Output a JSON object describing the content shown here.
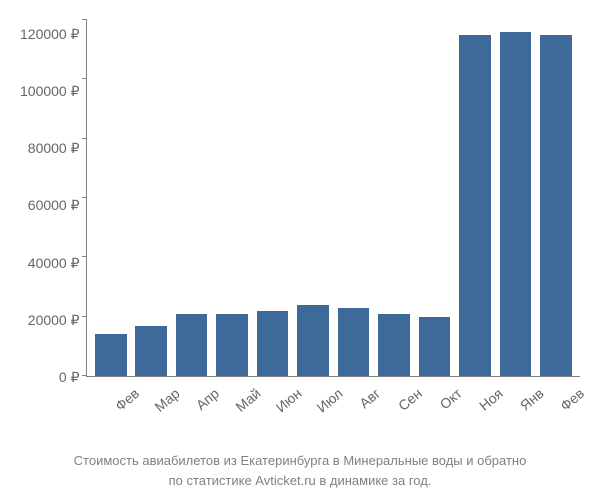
{
  "chart": {
    "type": "bar",
    "categories": [
      "Фев",
      "Мар",
      "Апр",
      "Май",
      "Июн",
      "Июл",
      "Авг",
      "Сен",
      "Окт",
      "Ноя",
      "Янв",
      "Фев"
    ],
    "values": [
      14000,
      17000,
      21000,
      21000,
      22000,
      24000,
      23000,
      21000,
      20000,
      115000,
      116000,
      115000
    ],
    "bar_color": "#3d6a99",
    "ylim": [
      0,
      120000
    ],
    "ytick_step": 20000,
    "ytick_labels": [
      "0 ₽",
      "20000 ₽",
      "40000 ₽",
      "60000 ₽",
      "80000 ₽",
      "100000 ₽",
      "120000 ₽"
    ],
    "axis_color": "#808080",
    "tick_text_color": "#666666",
    "tick_fontsize": 14,
    "background_color": "#ffffff",
    "bar_width_ratio": 0.78,
    "x_label_rotation": -40
  },
  "caption": {
    "line1": "Стоимость авиабилетов из Екатеринбурга в Минеральные воды и обратно",
    "line2": "по статистике Avticket.ru в динамике за год.",
    "color": "#808080",
    "fontsize": 13
  }
}
